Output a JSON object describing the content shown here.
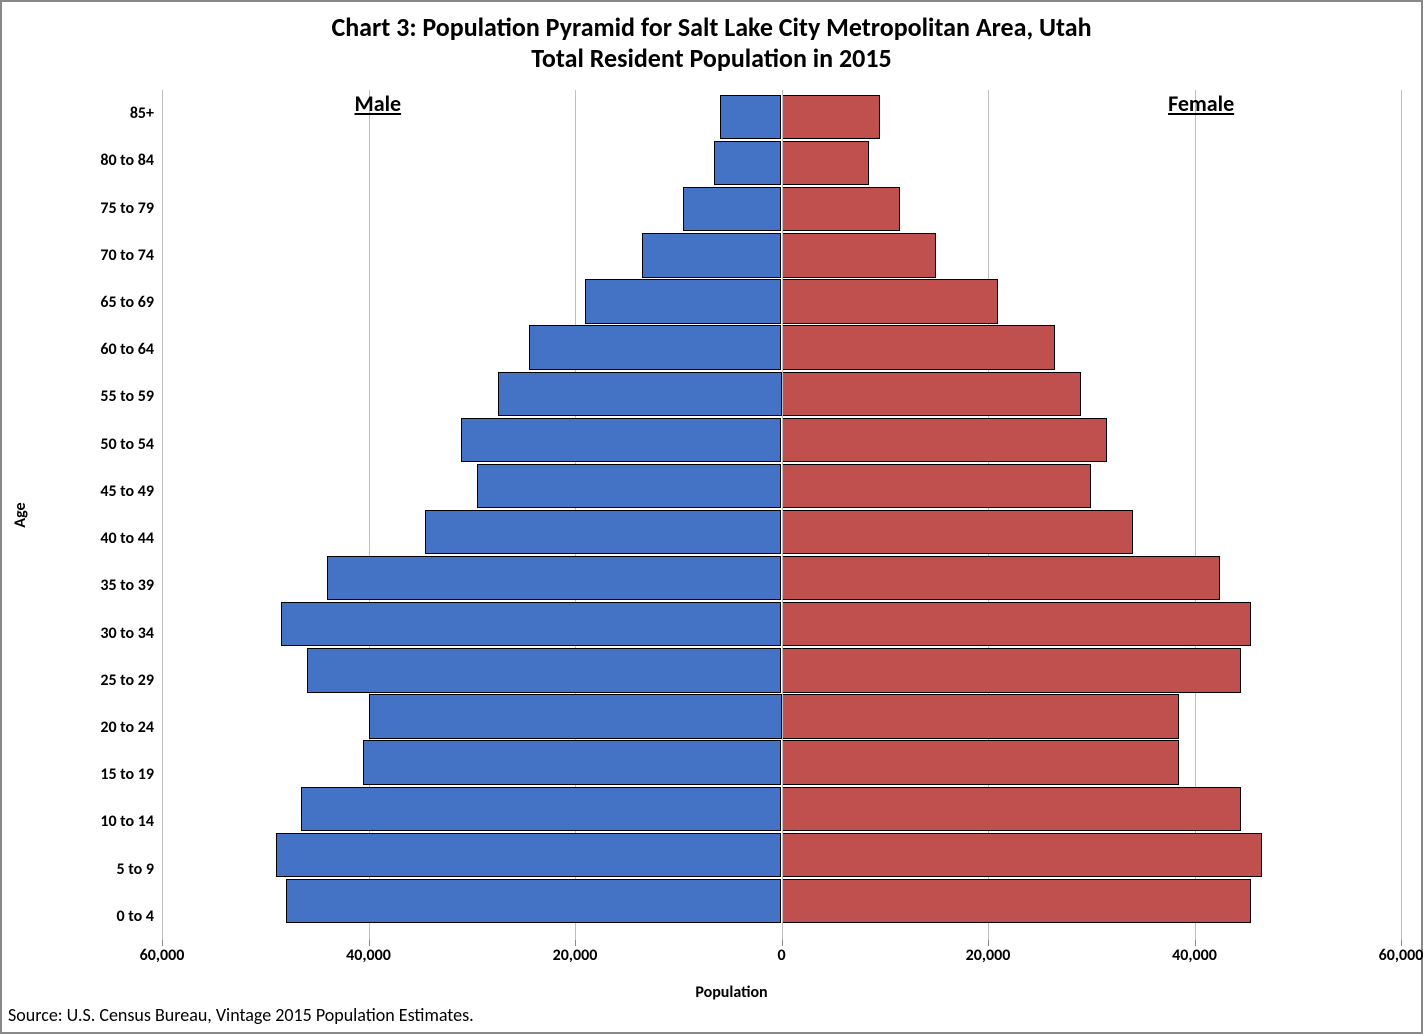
{
  "chart": {
    "type": "population-pyramid",
    "title_line1": "Chart 3: Population Pyramid for Salt Lake City Metropolitan Area, Utah",
    "title_line2": "Total Resident Population in 2015",
    "title_fontsize": 26,
    "xlabel": "Population",
    "ylabel": "Age",
    "male_label": "Male",
    "female_label": "Female",
    "sexlabel_fontsize": 22,
    "background_color": "#ffffff",
    "frame_border_color": "#888888",
    "grid_color": "#bfbfbf",
    "bar_border_color": "#000000",
    "male_color": "#4472c4",
    "female_color": "#c0504d",
    "x_min": -60000,
    "x_max": 60000,
    "x_ticks": [
      -60000,
      -40000,
      -20000,
      0,
      20000,
      40000,
      60000
    ],
    "x_tick_labels": [
      "60,000",
      "40,000",
      "20,000",
      "0",
      "20,000",
      "40,000",
      "60,000"
    ],
    "categories": [
      "85+",
      "80 to 84",
      "75 to 79",
      "70 to 74",
      "65 to 69",
      "60 to 64",
      "55 to 59",
      "50 to 54",
      "45 to 49",
      "40 to 44",
      "35 to 39",
      "30 to 34",
      "25 to 29",
      "20 to 24",
      "15 to 19",
      "10 to 14",
      "5 to 9",
      "0 to 4"
    ],
    "male_values": [
      6000,
      6500,
      9500,
      13500,
      19000,
      24500,
      27500,
      31000,
      29500,
      34500,
      44000,
      48500,
      46000,
      40000,
      40500,
      46500,
      49000,
      48000
    ],
    "female_values": [
      9500,
      8500,
      11500,
      15000,
      21000,
      26500,
      29000,
      31500,
      30000,
      34000,
      42500,
      45500,
      44500,
      38500,
      38500,
      44500,
      46500,
      45500
    ],
    "source_text": "Source: U.S. Census Bureau, Vintage 2015 Population Estimates."
  }
}
